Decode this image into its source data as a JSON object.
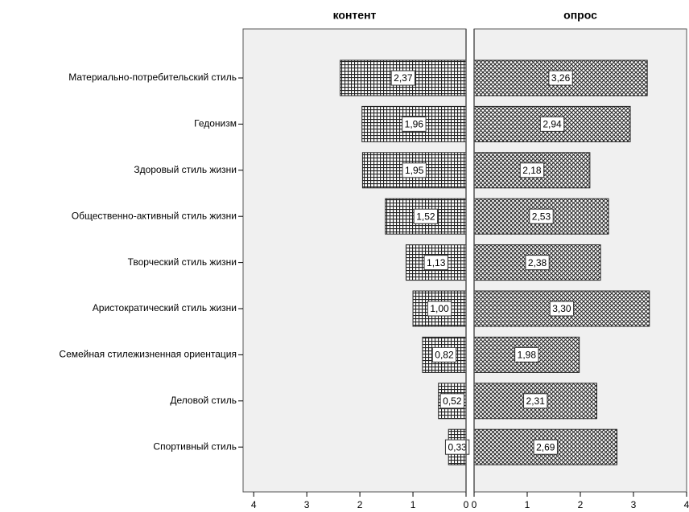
{
  "chart_data": {
    "type": "bar",
    "categories": [
      "Материально-потребительский стиль",
      "Гедонизм",
      "Здоровый стиль жизни",
      "Общественно-активный стиль жизни",
      "Творческий стиль жизни",
      "Аристократический стиль жизни",
      "Семейная стилежизненная ориентация",
      "Деловой стиль",
      "Спортивный стиль"
    ],
    "series": [
      {
        "name": "контент",
        "values": [
          2.37,
          1.96,
          1.95,
          1.52,
          1.13,
          1.0,
          0.82,
          0.52,
          0.33
        ],
        "value_labels": [
          "2,37",
          "1,96",
          "1,95",
          "1,52",
          "1,13",
          "1,00",
          "0,82",
          "0,52",
          "0,33"
        ],
        "xlim": [
          4.2,
          0
        ],
        "xticks": [
          4,
          3,
          2,
          1,
          0
        ]
      },
      {
        "name": "опрос",
        "values": [
          3.26,
          2.94,
          2.18,
          2.53,
          2.38,
          3.3,
          1.98,
          2.31,
          2.69
        ],
        "value_labels": [
          "3,26",
          "2,94",
          "2,18",
          "2,53",
          "2,38",
          "3,30",
          "1,98",
          "2,31",
          "2,69"
        ],
        "xlim": [
          0,
          4
        ],
        "xticks": [
          0,
          1,
          2,
          3,
          4
        ]
      }
    ]
  }
}
